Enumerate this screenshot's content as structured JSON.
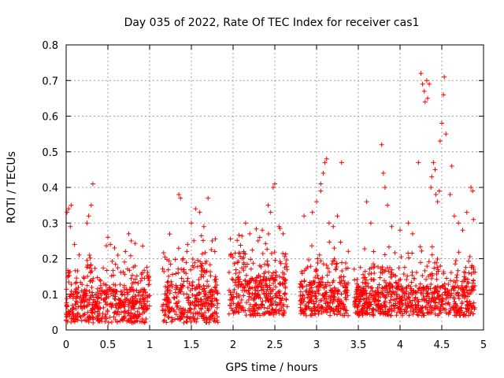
{
  "chart_data": {
    "type": "scatter",
    "title": "Day 035 of 2022, Rate Of TEC Index for receiver cas1",
    "xlabel": "GPS time / hours",
    "ylabel": "ROTI / TECUs",
    "xlim": [
      0,
      5
    ],
    "ylim": [
      0,
      0.8
    ],
    "xticks": [
      0,
      0.5,
      1,
      1.5,
      2,
      2.5,
      3,
      3.5,
      4,
      4.5,
      5
    ],
    "xtick_labels": [
      "0",
      "0.5",
      "1",
      "1.5",
      "2",
      "2.5",
      "3",
      "3.5",
      "4",
      "4.5",
      "5"
    ],
    "yticks": [
      0,
      0.1,
      0.2,
      0.3,
      0.4,
      0.5,
      0.6,
      0.7,
      0.8
    ],
    "ytick_labels": [
      "0",
      "0.1",
      "0.2",
      "0.3",
      "0.4",
      "0.5",
      "0.6",
      "0.7",
      "0.8"
    ],
    "grid": true,
    "marker": "+",
    "color": "#ff0000",
    "series": [
      {
        "name": "cas1",
        "segments": [
          {
            "x_start": 0.0,
            "x_end": 1.0,
            "base_min": 0.02,
            "base_max": 0.18
          },
          {
            "x_start": 1.15,
            "x_end": 1.82,
            "base_min": 0.02,
            "base_max": 0.2
          },
          {
            "x_start": 1.95,
            "x_end": 2.65,
            "base_min": 0.04,
            "base_max": 0.22
          },
          {
            "x_start": 2.8,
            "x_end": 3.38,
            "base_min": 0.04,
            "base_max": 0.2
          },
          {
            "x_start": 3.45,
            "x_end": 4.9,
            "base_min": 0.04,
            "base_max": 0.18
          }
        ],
        "points": [
          [
            0.01,
            0.33
          ],
          [
            0.03,
            0.34
          ],
          [
            0.06,
            0.35
          ],
          [
            0.05,
            0.29
          ],
          [
            0.1,
            0.24
          ],
          [
            0.25,
            0.3
          ],
          [
            0.27,
            0.32
          ],
          [
            0.3,
            0.35
          ],
          [
            0.32,
            0.41
          ],
          [
            0.28,
            0.21
          ],
          [
            0.5,
            0.26
          ],
          [
            0.53,
            0.24
          ],
          [
            0.58,
            0.23
          ],
          [
            0.62,
            0.21
          ],
          [
            0.75,
            0.27
          ],
          [
            0.78,
            0.25
          ],
          [
            1.35,
            0.38
          ],
          [
            1.37,
            0.37
          ],
          [
            1.5,
            0.3
          ],
          [
            1.55,
            0.34
          ],
          [
            1.6,
            0.33
          ],
          [
            1.65,
            0.29
          ],
          [
            1.7,
            0.37
          ],
          [
            1.75,
            0.25
          ],
          [
            1.78,
            0.22
          ],
          [
            2.15,
            0.3
          ],
          [
            2.2,
            0.27
          ],
          [
            2.35,
            0.28
          ],
          [
            2.42,
            0.35
          ],
          [
            2.45,
            0.33
          ],
          [
            2.48,
            0.4
          ],
          [
            2.5,
            0.41
          ],
          [
            2.55,
            0.29
          ],
          [
            2.6,
            0.27
          ],
          [
            2.3,
            0.25
          ],
          [
            2.85,
            0.32
          ],
          [
            2.95,
            0.33
          ],
          [
            3.0,
            0.36
          ],
          [
            3.05,
            0.41
          ],
          [
            3.08,
            0.44
          ],
          [
            3.1,
            0.47
          ],
          [
            3.12,
            0.48
          ],
          [
            3.15,
            0.3
          ],
          [
            3.2,
            0.29
          ],
          [
            3.25,
            0.32
          ],
          [
            3.3,
            0.47
          ],
          [
            3.05,
            0.39
          ],
          [
            3.6,
            0.36
          ],
          [
            3.65,
            0.3
          ],
          [
            3.78,
            0.52
          ],
          [
            3.8,
            0.44
          ],
          [
            3.82,
            0.4
          ],
          [
            3.85,
            0.35
          ],
          [
            3.9,
            0.29
          ],
          [
            4.0,
            0.28
          ],
          [
            4.1,
            0.3
          ],
          [
            4.15,
            0.27
          ],
          [
            4.22,
            0.47
          ],
          [
            4.25,
            0.72
          ],
          [
            4.27,
            0.69
          ],
          [
            4.29,
            0.67
          ],
          [
            4.3,
            0.64
          ],
          [
            4.32,
            0.7
          ],
          [
            4.35,
            0.69
          ],
          [
            4.33,
            0.65
          ],
          [
            4.37,
            0.4
          ],
          [
            4.38,
            0.43
          ],
          [
            4.4,
            0.47
          ],
          [
            4.42,
            0.45
          ],
          [
            4.43,
            0.38
          ],
          [
            4.45,
            0.36
          ],
          [
            4.47,
            0.39
          ],
          [
            4.48,
            0.53
          ],
          [
            4.5,
            0.58
          ],
          [
            4.52,
            0.66
          ],
          [
            4.53,
            0.71
          ],
          [
            4.55,
            0.55
          ],
          [
            4.6,
            0.38
          ],
          [
            4.62,
            0.46
          ],
          [
            4.65,
            0.32
          ],
          [
            4.7,
            0.3
          ],
          [
            4.75,
            0.28
          ],
          [
            4.8,
            0.33
          ],
          [
            4.85,
            0.4
          ],
          [
            4.87,
            0.39
          ],
          [
            4.88,
            0.31
          ]
        ]
      }
    ]
  }
}
